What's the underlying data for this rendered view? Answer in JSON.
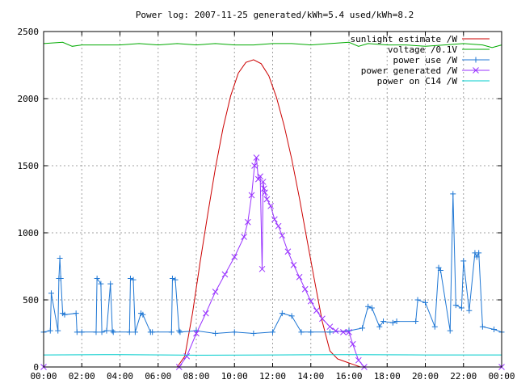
{
  "chart_data": {
    "type": "line",
    "title": "Power log: 2007-11-25 generated/kWh=5.4 used/kWh=8.2",
    "xlabel": "",
    "ylabel": "",
    "x_unit": "hour of day",
    "xlim": [
      0,
      24
    ],
    "ylim": [
      0,
      2500
    ],
    "x_ticks": [
      0,
      2,
      4,
      6,
      8,
      10,
      12,
      14,
      16,
      18,
      20,
      22,
      24
    ],
    "x_tick_labels": [
      "00:00",
      "02:00",
      "04:00",
      "06:00",
      "08:00",
      "10:00",
      "12:00",
      "14:00",
      "16:00",
      "18:00",
      "20:00",
      "22:00",
      "00:00"
    ],
    "y_ticks": [
      0,
      500,
      1000,
      1500,
      2000,
      2500
    ],
    "y_tick_labels": [
      "0",
      "500",
      "1000",
      "1500",
      "2000",
      "2500"
    ],
    "grid": true,
    "legend_position": "top-right",
    "series": [
      {
        "name": "sunlight estimate /W",
        "color": "#cc0000",
        "marker": "none",
        "x": [
          0,
          7.0,
          7.4,
          7.8,
          8.2,
          8.6,
          9.0,
          9.4,
          9.8,
          10.2,
          10.6,
          11.0,
          11.4,
          11.8,
          12.2,
          12.6,
          13.0,
          13.4,
          13.8,
          14.2,
          14.6,
          15.0,
          15.4,
          15.8,
          16.2,
          16.6,
          24
        ],
        "y": [
          0,
          0,
          80,
          400,
          780,
          1140,
          1480,
          1780,
          2020,
          2190,
          2270,
          2290,
          2260,
          2170,
          2010,
          1800,
          1550,
          1260,
          950,
          640,
          340,
          120,
          60,
          40,
          20,
          0,
          0
        ]
      },
      {
        "name": "voltage /0.1V",
        "color": "#00aa00",
        "marker": "none",
        "x": [
          0,
          1.0,
          1.5,
          2.0,
          3.0,
          4.0,
          5.0,
          6.0,
          7.0,
          8.0,
          9.0,
          10.0,
          11.0,
          12.0,
          13.0,
          14.0,
          15.0,
          16.0,
          16.5,
          17.0,
          18.0,
          19.0,
          20.0,
          21.0,
          22.0,
          23.0,
          23.5,
          24
        ],
        "y": [
          2410,
          2420,
          2390,
          2400,
          2400,
          2400,
          2410,
          2400,
          2410,
          2400,
          2410,
          2400,
          2400,
          2410,
          2410,
          2400,
          2410,
          2420,
          2390,
          2410,
          2400,
          2400,
          2390,
          2400,
          2410,
          2400,
          2380,
          2400
        ]
      },
      {
        "name": "power use /W",
        "color": "#1f77d4",
        "marker": "plus",
        "x": [
          0,
          0.35,
          0.4,
          0.75,
          0.8,
          0.85,
          0.9,
          1.0,
          1.1,
          1.7,
          1.75,
          2.0,
          2.75,
          2.8,
          3.0,
          3.05,
          3.3,
          3.5,
          3.6,
          3.65,
          4.5,
          4.55,
          4.7,
          4.8,
          5.1,
          5.2,
          5.6,
          5.7,
          6.7,
          6.75,
          6.9,
          7.1,
          7.15,
          8.0,
          9.0,
          10.0,
          11.0,
          12.0,
          12.5,
          13.0,
          13.5,
          14.0,
          15.0,
          16.0,
          16.7,
          17.0,
          17.2,
          17.6,
          17.8,
          18.3,
          18.5,
          19.5,
          19.6,
          20.0,
          20.5,
          20.7,
          20.8,
          21.3,
          21.45,
          21.6,
          21.9,
          22.0,
          22.3,
          22.6,
          22.7,
          22.8,
          23.0,
          23.6,
          24
        ],
        "y": [
          260,
          270,
          550,
          270,
          660,
          810,
          660,
          400,
          390,
          400,
          260,
          260,
          260,
          660,
          620,
          260,
          270,
          620,
          270,
          260,
          260,
          660,
          650,
          260,
          400,
          390,
          260,
          260,
          260,
          660,
          650,
          270,
          260,
          270,
          250,
          260,
          250,
          260,
          400,
          380,
          260,
          260,
          260,
          270,
          290,
          450,
          440,
          300,
          340,
          330,
          340,
          340,
          500,
          480,
          300,
          740,
          720,
          270,
          1290,
          460,
          440,
          790,
          420,
          850,
          820,
          850,
          300,
          280,
          260
        ]
      },
      {
        "name": "power generated /W",
        "color": "#9933ff",
        "marker": "x",
        "x": [
          0,
          7.1,
          7.5,
          8.0,
          8.5,
          9.0,
          9.5,
          10.0,
          10.5,
          10.7,
          10.9,
          11.05,
          11.15,
          11.25,
          11.35,
          11.45,
          11.5,
          11.55,
          11.6,
          11.7,
          11.9,
          12.1,
          12.3,
          12.5,
          12.8,
          13.1,
          13.4,
          13.7,
          14.0,
          14.3,
          14.6,
          15.0,
          15.3,
          15.7,
          16.0,
          16.2,
          16.5,
          16.8,
          24
        ],
        "y": [
          0,
          0,
          80,
          250,
          400,
          560,
          690,
          820,
          970,
          1080,
          1280,
          1500,
          1560,
          1400,
          1420,
          730,
          1380,
          1330,
          1300,
          1250,
          1200,
          1100,
          1050,
          980,
          860,
          760,
          670,
          580,
          490,
          420,
          360,
          300,
          270,
          260,
          260,
          170,
          50,
          0,
          0
        ]
      },
      {
        "name": "power on C14 /W",
        "color": "#00cccc",
        "marker": "none",
        "x": [
          0,
          4,
          8,
          12,
          16,
          20,
          24
        ],
        "y": [
          90,
          92,
          88,
          90,
          92,
          90,
          90
        ]
      }
    ]
  }
}
